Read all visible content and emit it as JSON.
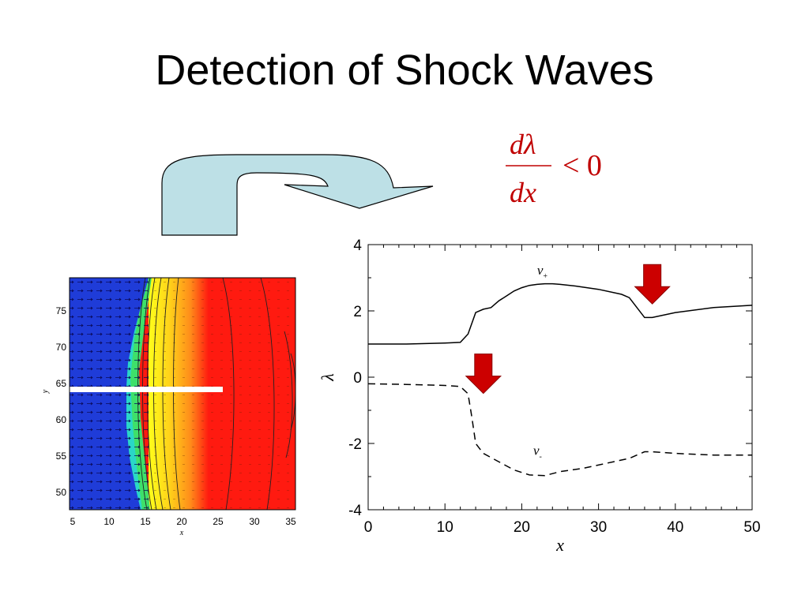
{
  "slide": {
    "title": "Detection of Shock Waves",
    "criterion": {
      "numerator": "dλ",
      "denominator": "dx",
      "relation": "< 0"
    }
  },
  "colormap_plot": {
    "x_ticks": [
      "5",
      "10",
      "15",
      "20",
      "25",
      "30",
      "35"
    ],
    "y_ticks": [
      "75",
      "70",
      "65",
      "60",
      "55",
      "50"
    ],
    "x_label": "x",
    "y_label": "y",
    "colors": {
      "blue": "#1f3cd8",
      "cyan": "#2ad6c8",
      "green": "#3ee06a",
      "yellow": "#ffff1a",
      "orange": "#ffb21e",
      "red": "#ff1a10"
    }
  },
  "chart_data": {
    "type": "line",
    "xlabel": "x",
    "ylabel": "λ",
    "xlim": [
      0,
      50
    ],
    "ylim": [
      -4,
      4
    ],
    "x_ticks": [
      "0",
      "10",
      "20",
      "30",
      "40",
      "50"
    ],
    "y_ticks": [
      "4",
      "2",
      "0",
      "-2",
      "-4"
    ],
    "series": [
      {
        "name": "v+",
        "style": "solid",
        "x": [
          0,
          5,
          10,
          12,
          13,
          14,
          15,
          16,
          17,
          18,
          19,
          20,
          21,
          22,
          23,
          24,
          25,
          27,
          30,
          33,
          34,
          35,
          36,
          37,
          40,
          45,
          50
        ],
        "y": [
          1.0,
          1.0,
          1.03,
          1.05,
          1.3,
          1.95,
          2.05,
          2.1,
          2.3,
          2.45,
          2.6,
          2.7,
          2.77,
          2.8,
          2.82,
          2.82,
          2.8,
          2.75,
          2.65,
          2.5,
          2.4,
          2.1,
          1.8,
          1.8,
          1.95,
          2.1,
          2.17
        ]
      },
      {
        "name": "v-",
        "style": "dashed",
        "x": [
          0,
          5,
          10,
          12,
          13,
          13.5,
          14,
          15,
          17,
          19,
          21,
          23,
          25,
          28,
          32,
          34,
          35,
          36,
          37,
          40,
          45,
          50
        ],
        "y": [
          -0.2,
          -0.22,
          -0.25,
          -0.28,
          -0.5,
          -1.2,
          -2.0,
          -2.3,
          -2.55,
          -2.8,
          -2.95,
          -2.97,
          -2.85,
          -2.75,
          -2.55,
          -2.45,
          -2.35,
          -2.25,
          -2.25,
          -2.3,
          -2.35,
          -2.35
        ]
      }
    ],
    "annotations": [
      {
        "text": "v",
        "sub": "+",
        "x": 22,
        "y": 3.1
      },
      {
        "text": "v",
        "sub": "-",
        "x": 21.5,
        "y": -2.35
      }
    ],
    "markers": [
      {
        "type": "down-arrow",
        "x": 37,
        "y_top": 3.4,
        "color": "#cc0000"
      },
      {
        "type": "down-arrow",
        "x": 15,
        "y_top": 0.7,
        "color": "#cc0000"
      }
    ]
  }
}
